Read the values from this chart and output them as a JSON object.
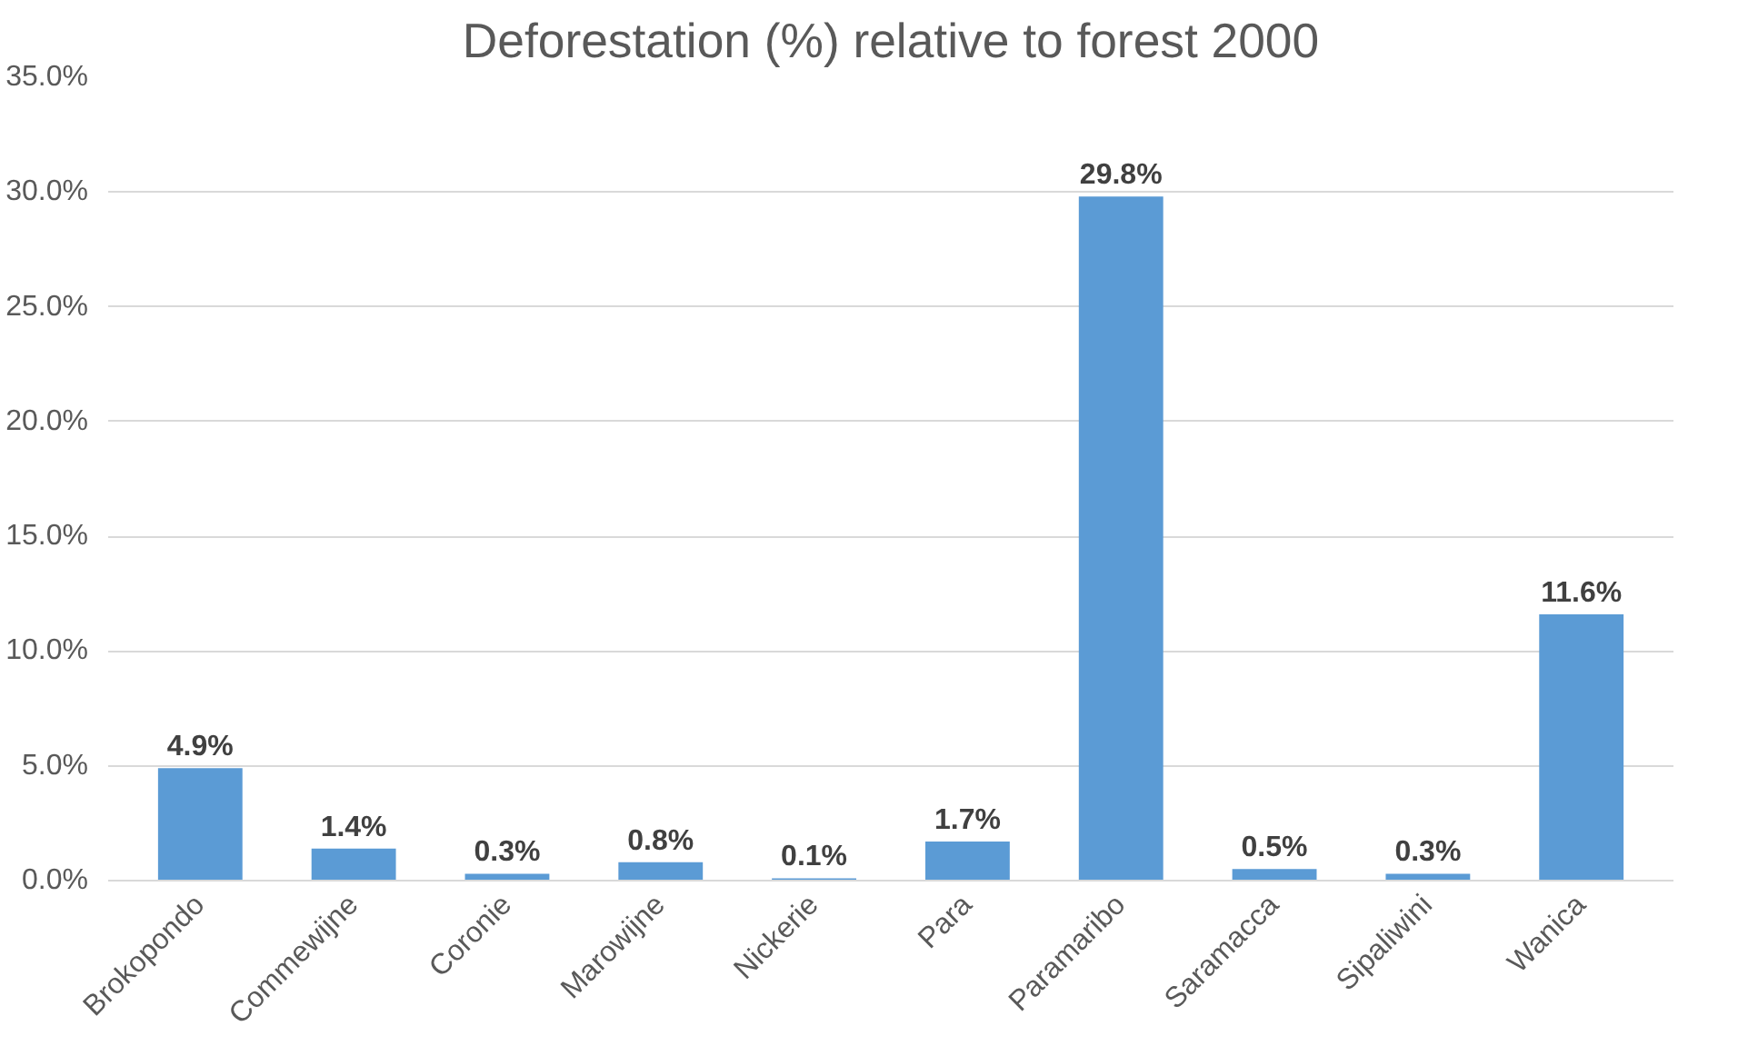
{
  "chart_data": {
    "type": "bar",
    "title": "Deforestation (%) relative to forest 2000",
    "categories": [
      "Brokopondo",
      "Commewijne",
      "Coronie",
      "Marowijne",
      "Nickerie",
      "Para",
      "Paramaribo",
      "Saramacca",
      "Sipaliwini",
      "Wanica"
    ],
    "values": [
      4.9,
      1.4,
      0.3,
      0.8,
      0.1,
      1.7,
      29.8,
      0.5,
      0.3,
      11.6
    ],
    "value_labels": [
      "4.9%",
      "1.4%",
      "0.3%",
      "0.8%",
      "0.1%",
      "1.7%",
      "29.8%",
      "0.5%",
      "0.3%",
      "11.6%"
    ],
    "color": "#5b9bd5",
    "ylim": [
      0,
      35
    ],
    "yticks": [
      {
        "value": 0,
        "label": "0.0%"
      },
      {
        "value": 5,
        "label": "5.0%"
      },
      {
        "value": 10,
        "label": "10.0%"
      },
      {
        "value": 15,
        "label": "15.0%"
      },
      {
        "value": 20,
        "label": "20.0%"
      },
      {
        "value": 25,
        "label": "25.0%"
      },
      {
        "value": 30,
        "label": "30.0%"
      },
      {
        "value": 35,
        "label": "35.0%"
      }
    ],
    "grid": "y"
  }
}
